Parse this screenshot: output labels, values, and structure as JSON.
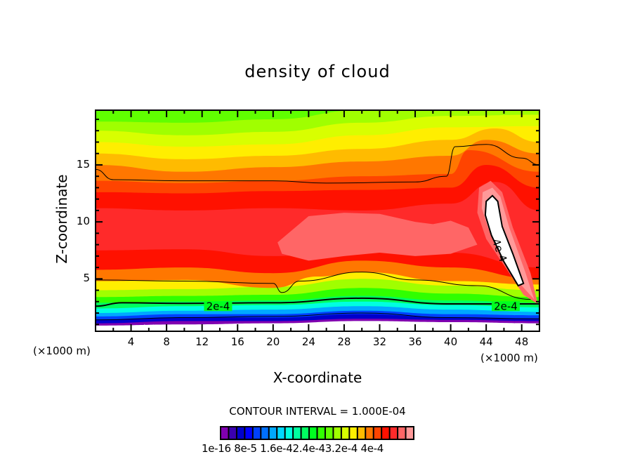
{
  "chart_data": {
    "type": "heatmap",
    "subtype": "filled-contour",
    "title": "density of cloud",
    "xlabel": "X-coordinate",
    "ylabel": "Z-coordinate",
    "x_unit": "(×1000 m)",
    "xlim": [
      0,
      50
    ],
    "ylim": [
      0.4,
      19.8
    ],
    "x_ticks": [
      4,
      8,
      12,
      16,
      20,
      24,
      28,
      32,
      36,
      40,
      44,
      48
    ],
    "x_tick_labels": [
      "4",
      "8",
      "12",
      "16",
      "20",
      "24",
      "28",
      "32",
      "36",
      "40",
      "44",
      "48"
    ],
    "y_ticks": [
      5,
      10,
      15
    ],
    "y_tick_labels": [
      "5",
      "10",
      "15"
    ],
    "contour_interval_text": "CONTOUR INTERVAL = 1.000E-04",
    "contour_line_labels": [
      {
        "text": "2e-4",
        "x": 13.8,
        "z": 2.6
      },
      {
        "text": "2e-4",
        "x": 46.2,
        "z": 2.6
      },
      {
        "text": "4e-4",
        "x": 45.5,
        "z": 7.5
      }
    ],
    "colorbar": {
      "labels": [
        "1e-16",
        "8e-5",
        "1.6e-4",
        "2.4e-4",
        "3.2e-4",
        "4e-4"
      ],
      "min": 1e-16,
      "max": 0.0004,
      "colors": [
        "#8000b0",
        "#3a00b0",
        "#0000cc",
        "#0000ff",
        "#0040ff",
        "#0070ff",
        "#00a8ff",
        "#00d8ff",
        "#00ffe0",
        "#00ffa0",
        "#00ff60",
        "#00ff20",
        "#30ff00",
        "#60ff00",
        "#a0ff00",
        "#d8ff00",
        "#ffee00",
        "#ffbb00",
        "#ff7700",
        "#ff4400",
        "#ff1100",
        "#ff2a2a",
        "#ff6666",
        "#ff9999"
      ]
    },
    "field_bands": [
      {
        "level_index": 0,
        "profile": [
          [
            0,
            0.9
          ],
          [
            10,
            1.0
          ],
          [
            20,
            1.1
          ],
          [
            30,
            1.3
          ],
          [
            40,
            1.2
          ],
          [
            50,
            1.1
          ]
        ]
      },
      {
        "level_index": 2,
        "profile": [
          [
            0,
            1.1
          ],
          [
            10,
            1.3
          ],
          [
            20,
            1.3
          ],
          [
            30,
            1.5
          ],
          [
            40,
            1.4
          ],
          [
            50,
            1.3
          ]
        ]
      },
      {
        "level_index": 4,
        "profile": [
          [
            0,
            1.4
          ],
          [
            10,
            1.6
          ],
          [
            20,
            1.6
          ],
          [
            30,
            1.9
          ],
          [
            40,
            1.6
          ],
          [
            50,
            1.5
          ]
        ]
      },
      {
        "level_index": 6,
        "profile": [
          [
            0,
            1.7
          ],
          [
            10,
            1.9
          ],
          [
            20,
            1.9
          ],
          [
            30,
            2.2
          ],
          [
            40,
            1.9
          ],
          [
            50,
            1.8
          ]
        ]
      },
      {
        "level_index": 8,
        "profile": [
          [
            0,
            2.0
          ],
          [
            10,
            2.2
          ],
          [
            20,
            2.3
          ],
          [
            30,
            2.6
          ],
          [
            40,
            2.3
          ],
          [
            50,
            2.1
          ]
        ]
      },
      {
        "level_index": 10,
        "profile": [
          [
            0,
            2.4
          ],
          [
            10,
            2.6
          ],
          [
            20,
            2.7
          ],
          [
            30,
            3.0
          ],
          [
            40,
            2.7
          ],
          [
            50,
            2.5
          ]
        ]
      },
      {
        "level_index": 12,
        "profile": [
          [
            0,
            2.9
          ],
          [
            10,
            3.0
          ],
          [
            20,
            3.1
          ],
          [
            30,
            3.5
          ],
          [
            40,
            3.1
          ],
          [
            50,
            2.9
          ]
        ]
      },
      {
        "level_index": 14,
        "profile": [
          [
            0,
            3.4
          ],
          [
            10,
            3.5
          ],
          [
            20,
            3.6
          ],
          [
            30,
            4.2
          ],
          [
            40,
            3.7
          ],
          [
            50,
            3.4
          ]
        ]
      },
      {
        "level_index": 16,
        "profile": [
          [
            0,
            4.0
          ],
          [
            10,
            4.1
          ],
          [
            20,
            4.3
          ],
          [
            30,
            5.0
          ],
          [
            40,
            4.4
          ],
          [
            50,
            4.0
          ]
        ]
      },
      {
        "level_index": 18,
        "profile": [
          [
            0,
            4.8
          ],
          [
            10,
            4.9
          ],
          [
            20,
            4.2
          ],
          [
            25,
            5.2
          ],
          [
            30,
            5.6
          ],
          [
            40,
            4.8
          ],
          [
            50,
            4.5
          ]
        ]
      },
      {
        "level_index": 20,
        "profile": [
          [
            0,
            5.8
          ],
          [
            10,
            6.0
          ],
          [
            20,
            5.5
          ],
          [
            30,
            6.6
          ],
          [
            40,
            6.0
          ],
          [
            50,
            5.0
          ]
        ]
      },
      {
        "level_index": 21,
        "profile": [
          [
            0,
            7.5
          ],
          [
            10,
            7.6
          ],
          [
            20,
            7.0
          ],
          [
            30,
            7.5
          ],
          [
            40,
            7.3
          ],
          [
            50,
            6.0
          ]
        ]
      },
      {
        "level_index": 20,
        "profile": [
          [
            0,
            11.2
          ],
          [
            10,
            11.0
          ],
          [
            20,
            11.2
          ],
          [
            30,
            11.0
          ],
          [
            40,
            11.6
          ],
          [
            45,
            13.5
          ],
          [
            50,
            11.0
          ]
        ]
      },
      {
        "level_index": 19,
        "profile": [
          [
            0,
            12.6
          ],
          [
            10,
            12.5
          ],
          [
            20,
            12.7
          ],
          [
            30,
            12.8
          ],
          [
            40,
            13.0
          ],
          [
            44,
            15.0
          ],
          [
            50,
            13.0
          ]
        ]
      },
      {
        "level_index": 18,
        "profile": [
          [
            0,
            13.6
          ],
          [
            10,
            13.4
          ],
          [
            20,
            13.6
          ],
          [
            30,
            14.0
          ],
          [
            40,
            14.2
          ],
          [
            42,
            16.3
          ],
          [
            50,
            14.4
          ]
        ]
      },
      {
        "level_index": 17,
        "profile": [
          [
            0,
            15.0
          ],
          [
            10,
            14.4
          ],
          [
            20,
            14.8
          ],
          [
            30,
            15.3
          ],
          [
            40,
            15.8
          ],
          [
            44,
            17.2
          ],
          [
            50,
            16.0
          ]
        ]
      },
      {
        "level_index": 16,
        "profile": [
          [
            0,
            16.0
          ],
          [
            10,
            15.5
          ],
          [
            20,
            15.8
          ],
          [
            30,
            16.4
          ],
          [
            40,
            17.2
          ],
          [
            45,
            18.2
          ],
          [
            50,
            17.0
          ]
        ]
      },
      {
        "level_index": 15,
        "profile": [
          [
            0,
            17.0
          ],
          [
            10,
            16.6
          ],
          [
            20,
            16.8
          ],
          [
            30,
            17.6
          ],
          [
            40,
            18.3
          ],
          [
            50,
            18.4
          ]
        ]
      },
      {
        "level_index": 14,
        "profile": [
          [
            0,
            18.0
          ],
          [
            10,
            17.6
          ],
          [
            20,
            17.9
          ],
          [
            30,
            18.7
          ],
          [
            40,
            19.3
          ],
          [
            50,
            19.4
          ]
        ]
      },
      {
        "level_index": 13,
        "profile": [
          [
            0,
            18.8
          ],
          [
            10,
            18.7
          ],
          [
            20,
            19.0
          ],
          [
            30,
            19.8
          ],
          [
            40,
            19.8
          ],
          [
            50,
            19.8
          ]
        ]
      }
    ]
  }
}
